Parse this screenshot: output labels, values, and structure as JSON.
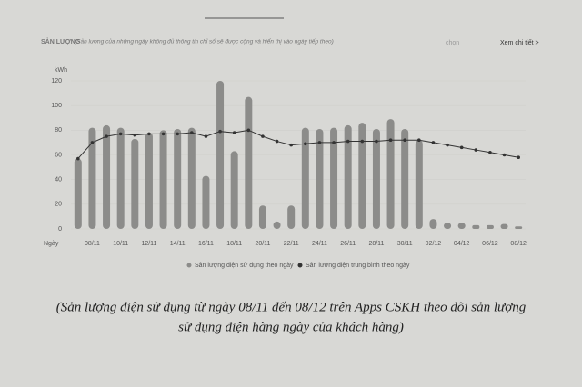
{
  "chart_data": {
    "type": "bar",
    "title": "SẢN LƯỢNG",
    "subtitle": "(Sản lượng của những ngày không đủ thông tin chỉ số sẽ được cộng và hiển thị vào ngày tiếp theo)",
    "select_label": "chọn",
    "link_label": "Xem chi tiết >",
    "y_label": "kWh",
    "x_label": "Ngày",
    "caption": [
      "(Sản lượng điện sử dụng từ ngày 08/11 đến 08/12 trên Apps CSKH theo dõi sản lượng",
      "sử dụng điện hàng ngày của khách hàng)"
    ],
    "categories": [
      null,
      "08/11",
      null,
      "10/11",
      null,
      "12/11",
      null,
      "14/11",
      null,
      "16/11",
      null,
      "18/11",
      null,
      "20/11",
      null,
      "22/11",
      null,
      "24/11",
      null,
      "26/11",
      null,
      "28/11",
      null,
      "30/11",
      null,
      "02/12",
      null,
      "04/12",
      null,
      "06/12",
      null,
      "08/12"
    ],
    "series": [
      {
        "name": "Sản lượng điện sử dụng theo ngày",
        "type": "bar",
        "color": "#8c8c8a",
        "values": [
          57,
          82,
          84,
          82,
          73,
          78,
          80,
          81,
          82,
          43,
          120,
          63,
          107,
          19,
          6,
          19,
          82,
          81,
          82,
          84,
          86,
          81,
          89,
          81,
          72,
          8,
          5,
          5,
          3,
          3,
          4,
          2
        ]
      },
      {
        "name": "Sản lượng điện trung bình theo ngày",
        "type": "line",
        "color": "#333333",
        "values": [
          57,
          70,
          75,
          77,
          76,
          77,
          77,
          77,
          78,
          75,
          79,
          78,
          80,
          75,
          71,
          68,
          69,
          70,
          70,
          71,
          71,
          71,
          72,
          72,
          72,
          70,
          68,
          66,
          64,
          62,
          60,
          58
        ]
      }
    ],
    "ylim": [
      0,
      120
    ],
    "yticks": [
      0,
      20,
      40,
      60,
      80,
      100,
      120
    ],
    "grid": true
  }
}
